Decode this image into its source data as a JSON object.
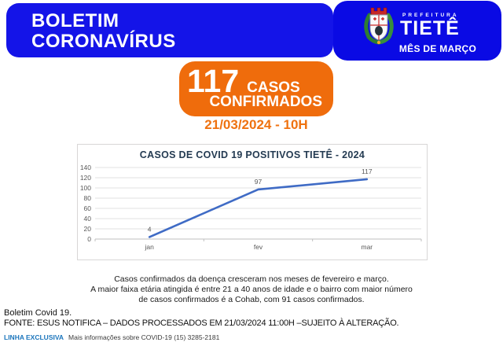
{
  "header": {
    "title_line1": "BOLETIM",
    "title_line2": "CORONAVÍRUS",
    "logo": {
      "crest_icon": "tiete-coat-of-arms",
      "small_label": "PREFEITURA",
      "city": "TIETÊ",
      "month": "MÊS DE MARÇO"
    },
    "colors": {
      "banner_blue": "#1414E8",
      "banner_blue_dark": "#0A0AE4"
    }
  },
  "badge": {
    "count": "117",
    "word1": "CASOS",
    "word2": "CONFIRMADOS",
    "color": "#EF6C0C"
  },
  "date_line": "21/03/2024 - 10H",
  "chart_data": {
    "type": "line",
    "title": "CASOS DE COVID 19 POSITIVOS TIETÊ - 2024",
    "categories": [
      "jan",
      "fev",
      "mar"
    ],
    "values": [
      4,
      97,
      117
    ],
    "ylim": [
      0,
      140
    ],
    "ytick_step": 20,
    "grid": true,
    "legend": "none",
    "line_color": "#3F6BC5",
    "label_color": "#595959",
    "title_color": "#243B52"
  },
  "description": {
    "line1": "Casos confirmados da doença cresceram nos meses de fevereiro e março.",
    "line2": "A maior faixa etária atingida é entre 21 a 40 anos de idade e o bairro com maior número",
    "line3": "de casos confirmados é a Cohab, com 91 casos confirmados."
  },
  "footer": {
    "line1": "Boletim Covid 19.",
    "line2": "FONTE: ESUS NOTIFICA – DADOS PROCESSADOS EM 21/03/2024 11:00H –SUJEITO À ALTERAÇÃO.",
    "hotline_label": "LINHA EXCLUSIVA",
    "hotline_text": "Mais informações sobre COVID-19  (15) 3285-2181"
  }
}
